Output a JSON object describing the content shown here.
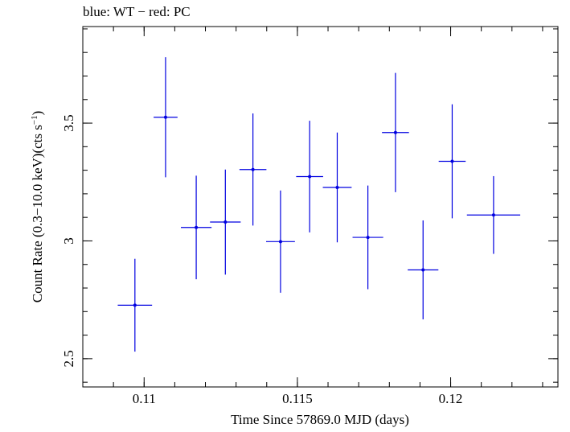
{
  "chart_data": {
    "type": "scatter",
    "title": "blue: WT − red: PC",
    "xlabel": "Time Since 57869.0 MJD (days)",
    "ylabel_main": "Count Rate (0.3−10.0 keV)(cts s",
    "ylabel_sup": "−1",
    "ylabel_close": ")",
    "xlim": [
      0.108,
      0.1235
    ],
    "ylim": [
      2.38,
      3.91
    ],
    "xticks_major": [
      0.11,
      0.115,
      0.12
    ],
    "xtick_labels": [
      "0.11",
      "0.115",
      "0.12"
    ],
    "yticks_major": [
      2.5,
      3,
      3.5
    ],
    "ytick_labels": [
      "2.5",
      "3",
      "3.5"
    ],
    "xticks_minor_step": 0.001,
    "yticks_minor_step": 0.1,
    "grid": false,
    "legend": "none",
    "series": [
      {
        "name": "WT",
        "color": "#0000e0",
        "points": [
          {
            "x": 0.1097,
            "y": 2.727,
            "xerr": 0.00056,
            "yerr_lo": 0.197,
            "yerr_hi": 0.197
          },
          {
            "x": 0.1107,
            "y": 3.525,
            "xerr": 0.00039,
            "yerr_lo": 0.255,
            "yerr_hi": 0.255
          },
          {
            "x": 0.1117,
            "y": 3.057,
            "xerr": 0.0005,
            "yerr_lo": 0.22,
            "yerr_hi": 0.22
          },
          {
            "x": 0.11265,
            "y": 3.08,
            "xerr": 0.0005,
            "yerr_lo": 0.223,
            "yerr_hi": 0.223
          },
          {
            "x": 0.11355,
            "y": 3.303,
            "xerr": 0.00044,
            "yerr_lo": 0.238,
            "yerr_hi": 0.238
          },
          {
            "x": 0.11445,
            "y": 2.997,
            "xerr": 0.00047,
            "yerr_lo": 0.217,
            "yerr_hi": 0.217
          },
          {
            "x": 0.1154,
            "y": 3.273,
            "xerr": 0.00044,
            "yerr_lo": 0.237,
            "yerr_hi": 0.237
          },
          {
            "x": 0.1163,
            "y": 3.227,
            "xerr": 0.00047,
            "yerr_lo": 0.233,
            "yerr_hi": 0.233
          },
          {
            "x": 0.1173,
            "y": 3.015,
            "xerr": 0.0005,
            "yerr_lo": 0.22,
            "yerr_hi": 0.22
          },
          {
            "x": 0.1182,
            "y": 3.46,
            "xerr": 0.00044,
            "yerr_lo": 0.253,
            "yerr_hi": 0.253
          },
          {
            "x": 0.1191,
            "y": 2.877,
            "xerr": 0.0005,
            "yerr_lo": 0.21,
            "yerr_hi": 0.21
          },
          {
            "x": 0.12005,
            "y": 3.338,
            "xerr": 0.00044,
            "yerr_lo": 0.242,
            "yerr_hi": 0.242
          },
          {
            "x": 0.1214,
            "y": 3.11,
            "xerr": 0.00087,
            "yerr_lo": 0.165,
            "yerr_hi": 0.165
          }
        ]
      }
    ]
  }
}
